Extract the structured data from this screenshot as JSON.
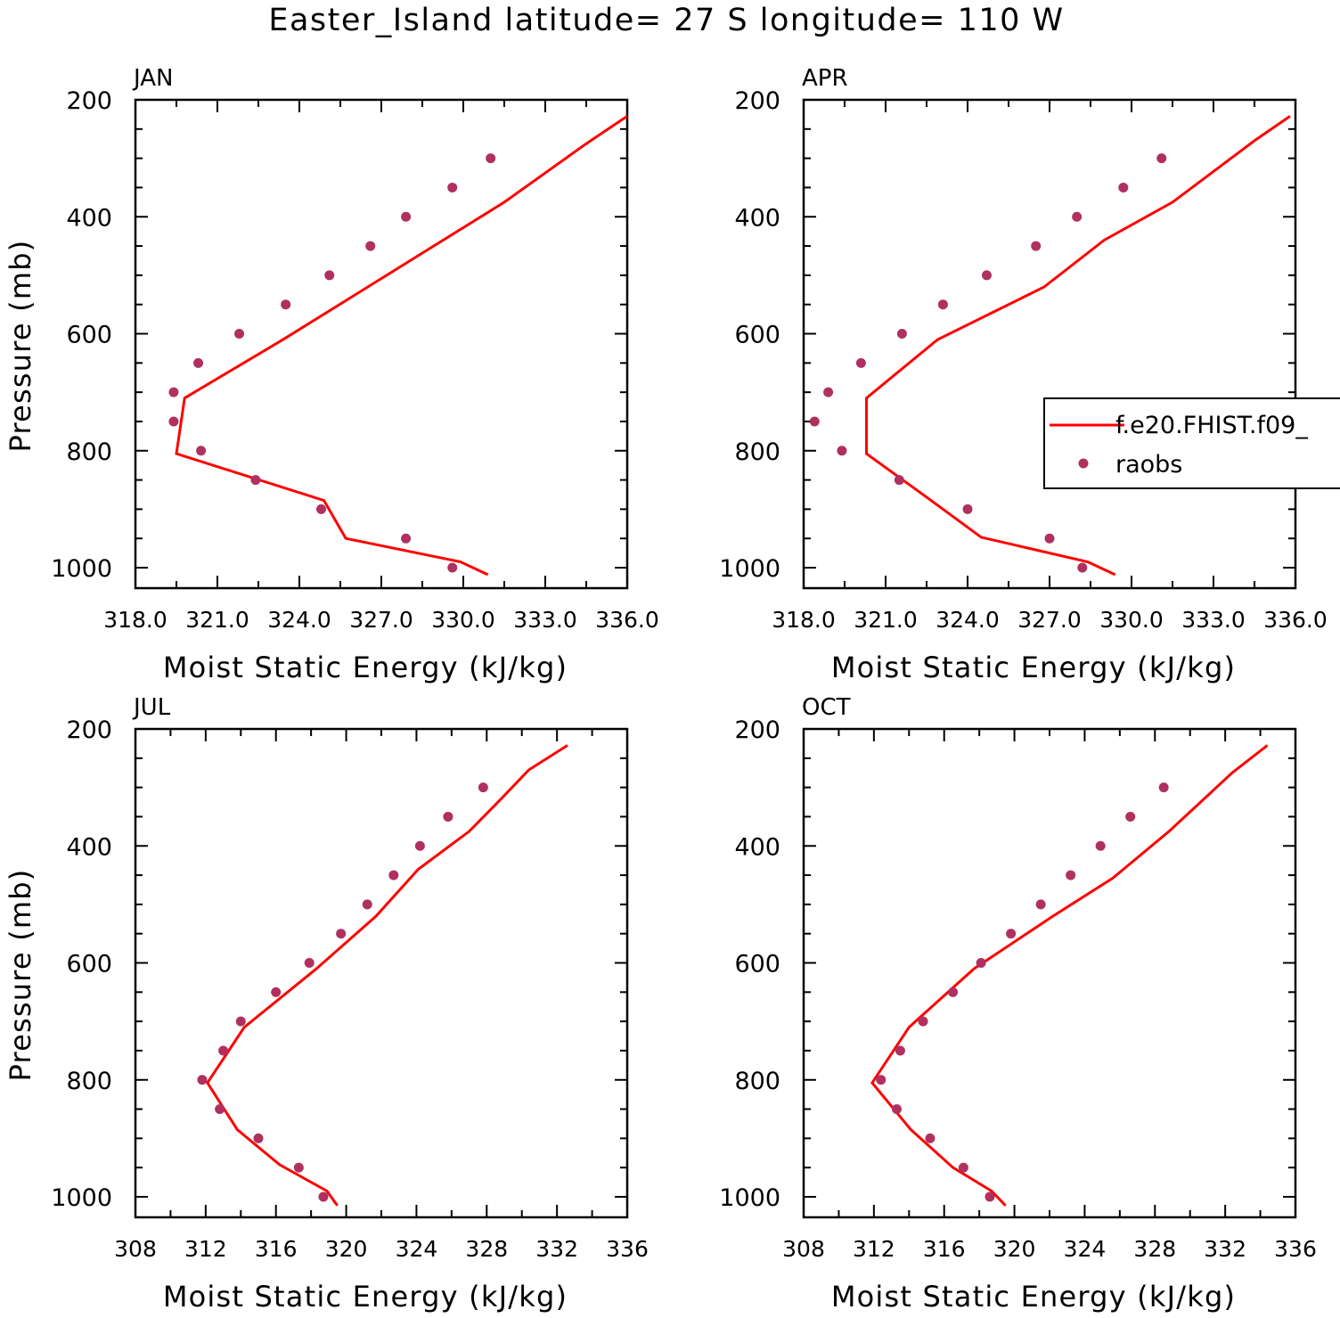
{
  "figure": {
    "title": "Easter_Island  latitude= 27 S longitude= 110 W"
  },
  "colors": {
    "model": "#ff0000",
    "obs": "#b03060",
    "axis": "#000000"
  },
  "legend": {
    "model_label": "f.e20.FHIST.f09_",
    "obs_label": "raobs",
    "placement": "right side of APR panel (clipped)"
  },
  "chart_data": [
    {
      "type": "line",
      "panel": "JAN",
      "title": "JAN",
      "xlabel": "Moist Static Energy (kJ/kg)",
      "ylabel": "Pressure (mb)",
      "xlim": [
        318,
        336
      ],
      "xticks": [
        "318.0",
        "321.0",
        "324.0",
        "327.0",
        "330.0",
        "333.0",
        "336.0"
      ],
      "xtick_values": [
        318,
        321,
        324,
        327,
        330,
        333,
        336
      ],
      "ylim": [
        1035,
        200
      ],
      "yticks": [
        "200",
        "400",
        "600",
        "800",
        "1000"
      ],
      "ytick_values": [
        200,
        400,
        600,
        800,
        1000
      ],
      "series": [
        {
          "kind": "line",
          "x": [
            330.9,
            329.9,
            325.7,
            324.9,
            319.5,
            319.8,
            323.4,
            331.5,
            334.5,
            336.0
          ],
          "y": [
            1012,
            990,
            950,
            885,
            805,
            710,
            610,
            375,
            275,
            228
          ]
        },
        {
          "kind": "points",
          "x": [
            329.6,
            327.9,
            324.8,
            322.4,
            320.4,
            319.4,
            319.4,
            320.3,
            321.8,
            323.5,
            325.1,
            326.6,
            327.9,
            329.6,
            331.0
          ],
          "y": [
            1000,
            950,
            900,
            850,
            800,
            750,
            700,
            650,
            600,
            550,
            500,
            450,
            400,
            350,
            300
          ]
        }
      ]
    },
    {
      "type": "line",
      "panel": "APR",
      "title": "APR",
      "xlabel": "Moist Static Energy (kJ/kg)",
      "ylabel": "",
      "xlim": [
        318,
        336
      ],
      "xticks": [
        "318.0",
        "321.0",
        "324.0",
        "327.0",
        "330.0",
        "333.0",
        "336.0"
      ],
      "xtick_values": [
        318,
        321,
        324,
        327,
        330,
        333,
        336
      ],
      "ylim": [
        1035,
        200
      ],
      "yticks": [
        "200",
        "400",
        "600",
        "800",
        "1000"
      ],
      "ytick_values": [
        200,
        400,
        600,
        800,
        1000
      ],
      "series": [
        {
          "kind": "line",
          "x": [
            329.4,
            328.4,
            324.5,
            322.6,
            320.3,
            320.3,
            322.9,
            326.8,
            329.0,
            331.5,
            334.5,
            335.8
          ],
          "y": [
            1012,
            990,
            948,
            883,
            805,
            710,
            610,
            520,
            440,
            375,
            270,
            228
          ]
        },
        {
          "kind": "points",
          "x": [
            328.2,
            327.0,
            324.0,
            321.5,
            319.4,
            318.4,
            318.9,
            320.1,
            321.6,
            323.1,
            324.7,
            326.5,
            328.0,
            329.7,
            331.1
          ],
          "y": [
            1000,
            950,
            900,
            850,
            800,
            750,
            700,
            650,
            600,
            550,
            500,
            450,
            400,
            350,
            300
          ]
        }
      ]
    },
    {
      "type": "line",
      "panel": "JUL",
      "title": "JUL",
      "xlabel": "Moist Static Energy (kJ/kg)",
      "ylabel": "Pressure (mb)",
      "xlim": [
        308,
        336
      ],
      "xticks": [
        "308",
        "312",
        "316",
        "320",
        "324",
        "328",
        "332",
        "336"
      ],
      "xtick_values": [
        308,
        312,
        316,
        320,
        324,
        328,
        332,
        336
      ],
      "ylim": [
        1035,
        200
      ],
      "yticks": [
        "200",
        "400",
        "600",
        "800",
        "1000"
      ],
      "ytick_values": [
        200,
        400,
        600,
        800,
        1000
      ],
      "series": [
        {
          "kind": "line",
          "x": [
            319.5,
            318.9,
            316.2,
            313.8,
            312.1,
            314.2,
            318.3,
            321.7,
            324.1,
            327.0,
            328.8,
            330.4,
            332.6
          ],
          "y": [
            1015,
            990,
            945,
            885,
            805,
            710,
            610,
            520,
            440,
            375,
            320,
            270,
            228
          ]
        },
        {
          "kind": "points",
          "x": [
            318.7,
            317.3,
            315.0,
            312.8,
            311.8,
            313.0,
            314.0,
            316.0,
            317.9,
            319.7,
            321.2,
            322.7,
            324.2,
            325.8,
            327.8
          ],
          "y": [
            1000,
            950,
            900,
            850,
            800,
            750,
            700,
            650,
            600,
            550,
            500,
            450,
            400,
            350,
            300
          ]
        }
      ]
    },
    {
      "type": "line",
      "panel": "OCT",
      "title": "OCT",
      "xlabel": "Moist Static Energy (kJ/kg)",
      "ylabel": "",
      "xlim": [
        308,
        336
      ],
      "xticks": [
        "308",
        "312",
        "316",
        "320",
        "324",
        "328",
        "332",
        "336"
      ],
      "xtick_values": [
        308,
        312,
        316,
        320,
        324,
        328,
        332,
        336
      ],
      "ylim": [
        1035,
        200
      ],
      "yticks": [
        "200",
        "400",
        "600",
        "800",
        "1000"
      ],
      "ytick_values": [
        200,
        400,
        600,
        800,
        1000
      ],
      "series": [
        {
          "kind": "line",
          "x": [
            319.5,
            318.7,
            316.5,
            314.1,
            311.9,
            314.0,
            317.7,
            322.2,
            325.6,
            328.8,
            332.4,
            334.4
          ],
          "y": [
            1015,
            990,
            950,
            885,
            805,
            710,
            610,
            520,
            455,
            375,
            275,
            228
          ]
        },
        {
          "kind": "points",
          "x": [
            318.6,
            317.1,
            315.2,
            313.3,
            312.4,
            313.5,
            314.8,
            316.5,
            318.1,
            319.8,
            321.5,
            323.2,
            324.9,
            326.6,
            328.5
          ],
          "y": [
            1000,
            950,
            900,
            850,
            800,
            750,
            700,
            650,
            600,
            550,
            500,
            450,
            400,
            350,
            300
          ]
        }
      ]
    }
  ]
}
